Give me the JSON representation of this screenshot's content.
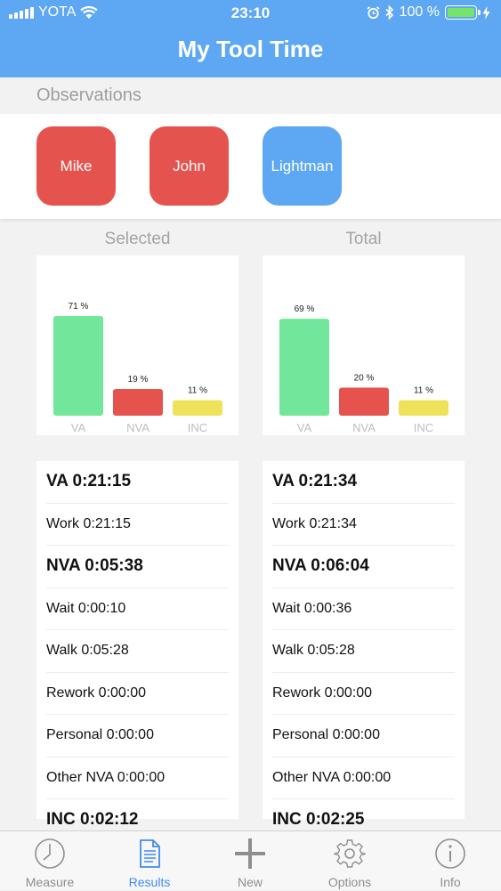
{
  "status": {
    "carrier": "YOTA",
    "time": "23:10",
    "battery": "100 %"
  },
  "nav": {
    "title": "My Tool Time"
  },
  "observations": {
    "label": "Observations",
    "people": [
      {
        "name": "Mike",
        "color": "#e5534e"
      },
      {
        "name": "John",
        "color": "#e5534e"
      },
      {
        "name": "Lightman",
        "color": "#5ea7f3"
      }
    ]
  },
  "columns": {
    "selected": "Selected",
    "total": "Total"
  },
  "chart_data": [
    {
      "type": "bar",
      "categories": [
        "VA",
        "NVA",
        "INC"
      ],
      "values": [
        71,
        19,
        11
      ],
      "value_labels": [
        "71 %",
        "19 %",
        "11 %"
      ],
      "colors": [
        "#72e69b",
        "#e5534e",
        "#efe25b"
      ]
    },
    {
      "type": "bar",
      "categories": [
        "VA",
        "NVA",
        "INC"
      ],
      "values": [
        69,
        20,
        11
      ],
      "value_labels": [
        "69 %",
        "20 %",
        "11 %"
      ],
      "colors": [
        "#72e69b",
        "#e5534e",
        "#efe25b"
      ]
    }
  ],
  "selected_list": [
    {
      "text": "VA 0:21:15",
      "bold": true
    },
    {
      "text": "Work 0:21:15",
      "bold": false
    },
    {
      "text": "NVA 0:05:38",
      "bold": true
    },
    {
      "text": "Wait 0:00:10",
      "bold": false
    },
    {
      "text": "Walk 0:05:28",
      "bold": false
    },
    {
      "text": "Rework 0:00:00",
      "bold": false
    },
    {
      "text": "Personal 0:00:00",
      "bold": false
    },
    {
      "text": "Other NVA 0:00:00",
      "bold": false
    },
    {
      "text": "INC 0:02:12",
      "bold": true
    }
  ],
  "total_list": [
    {
      "text": "VA 0:21:34",
      "bold": true
    },
    {
      "text": "Work 0:21:34",
      "bold": false
    },
    {
      "text": "NVA 0:06:04",
      "bold": true
    },
    {
      "text": "Wait 0:00:36",
      "bold": false
    },
    {
      "text": "Walk 0:05:28",
      "bold": false
    },
    {
      "text": "Rework 0:00:00",
      "bold": false
    },
    {
      "text": "Personal 0:00:00",
      "bold": false
    },
    {
      "text": "Other NVA 0:00:00",
      "bold": false
    },
    {
      "text": "INC 0:02:25",
      "bold": true
    }
  ],
  "tabs": [
    {
      "label": "Measure",
      "icon": "clock-icon",
      "active": false
    },
    {
      "label": "Results",
      "icon": "document-icon",
      "active": true
    },
    {
      "label": "New",
      "icon": "plus-icon",
      "active": false
    },
    {
      "label": "Options",
      "icon": "gear-icon",
      "active": false
    },
    {
      "label": "Info",
      "icon": "info-icon",
      "active": false
    }
  ]
}
